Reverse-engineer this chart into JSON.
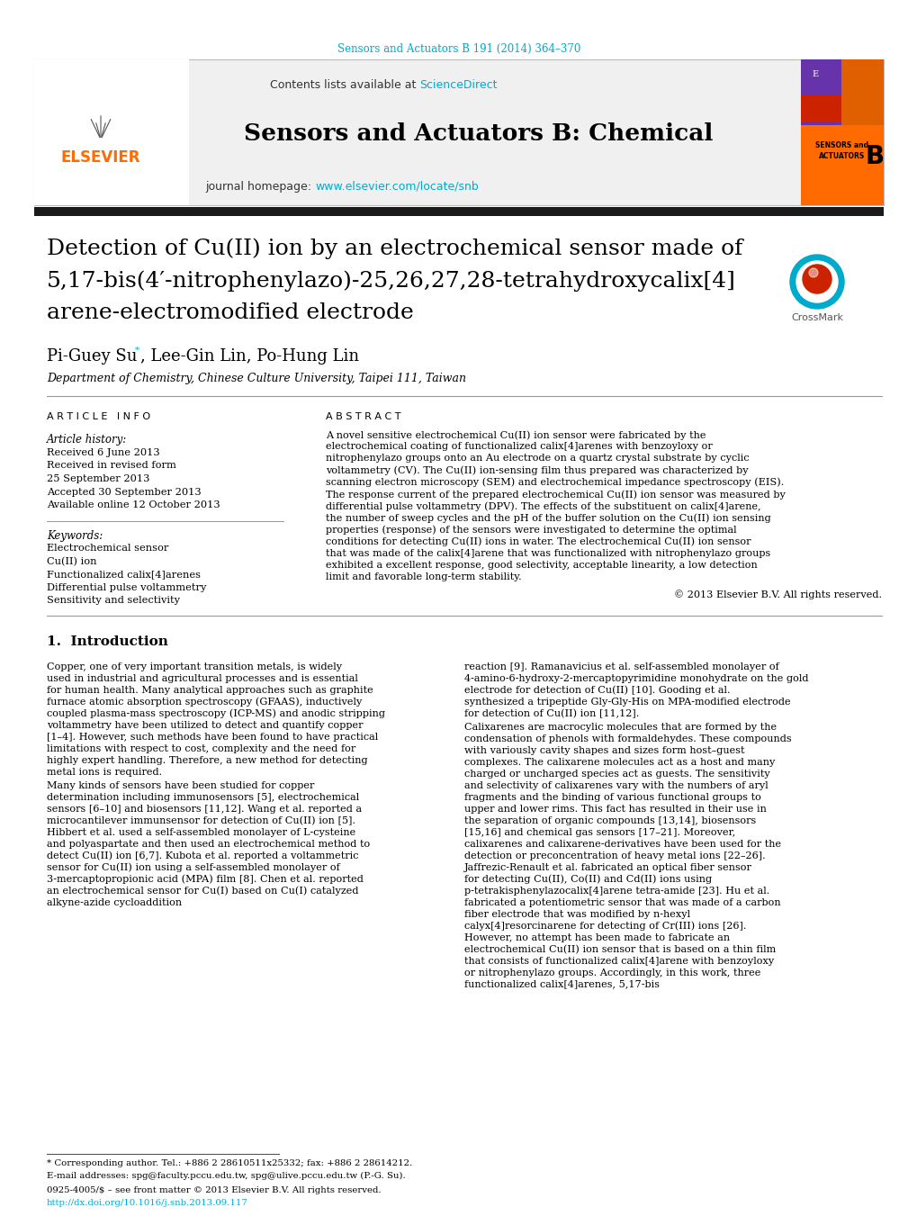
{
  "journal_ref": "Sensors and Actuators B 191 (2014) 364–370",
  "journal_name": "Sensors and Actuators B: Chemical",
  "contents_text": "Contents lists available at ",
  "sciencedirect": "ScienceDirect",
  "journal_homepage": "journal homepage: ",
  "homepage_url": "www.elsevier.com/locate/snb",
  "title_line1": "Detection of Cu(II) ion by an electrochemical sensor made of",
  "title_line2": "5,17-bis(4′-nitrophenylazo)-25,26,27,28-tetrahydroxycalix[4]",
  "title_line3": "arene-electromodified electrode",
  "affiliation": "Department of Chemistry, Chinese Culture University, Taipei 111, Taiwan",
  "article_info_header": "A R T I C L E   I N F O",
  "abstract_header": "A B S T R A C T",
  "article_history_label": "Article history:",
  "received": "Received 6 June 2013",
  "revised": "Received in revised form",
  "revised2": "25 September 2013",
  "accepted": "Accepted 30 September 2013",
  "available": "Available online 12 October 2013",
  "keywords_label": "Keywords:",
  "keywords": [
    "Electrochemical sensor",
    "Cu(II) ion",
    "Functionalized calix[4]arenes",
    "Differential pulse voltammetry",
    "Sensitivity and selectivity"
  ],
  "abstract_text": "A novel sensitive electrochemical Cu(II) ion sensor were fabricated by the electrochemical coating of functionalized calix[4]arenes with benzoyloxy or nitrophenylazo groups onto an Au electrode on a quartz crystal substrate by cyclic voltammetry (CV). The Cu(II) ion-sensing film thus prepared was characterized by scanning electron microscopy (SEM) and electrochemical impedance spectroscopy (EIS). The response current of the prepared electrochemical Cu(II) ion sensor was measured by differential pulse voltammetry (DPV). The effects of the substituent on calix[4]arene, the number of sweep cycles and the pH of the buffer solution on the Cu(II) ion sensing properties (response) of the sensors were investigated to determine the optimal conditions for detecting Cu(II) ions in water. The electrochemical Cu(II) ion sensor that was made of the calix[4]arene that was functionalized with nitrophenylazo groups exhibited a excellent response, good selectivity, acceptable linearity, a low detection limit and favorable long-term stability.",
  "copyright": "© 2013 Elsevier B.V. All rights reserved.",
  "section1_title": "1.  Introduction",
  "intro_col1": "    Copper, one of very important transition metals, is widely used in industrial and agricultural processes and is essential for human health. Many analytical approaches such as graphite furnace atomic absorption spectroscopy (GFAAS), inductively coupled plasma-mass spectroscopy (ICP-MS) and anodic stripping voltammetry have been utilized to detect and quantify copper [1–4]. However, such methods have been found to have practical limitations with respect to cost, complexity and the need for highly expert handling. Therefore, a new method for detecting metal ions is required.\n    Many kinds of sensors have been studied for copper determination including immunosensors [5], electrochemical sensors [6–10] and biosensors [11,12]. Wang et al. reported a microcantilever immunsensor for detection of Cu(II) ion [5]. Hibbert et al. used a self-assembled monolayer of L-cysteine and polyaspartate and then used an electrochemical method to detect Cu(II) ion [6,7]. Kubota et al. reported a voltammetric sensor for Cu(II) ion using a self-assembled monolayer of 3-mercaptopropionic acid (MPA) film [8]. Chen et al. reported an electrochemical sensor for Cu(I) based on Cu(I) catalyzed alkyne-azide cycloaddition",
  "intro_col2": "reaction [9]. Ramanavicius et al. self-assembled monolayer of 4-amino-6-hydroxy-2-mercaptopyrimidine monohydrate on the gold electrode for detection of Cu(II) [10]. Gooding et al. synthesized a tripeptide Gly-Gly-His on MPA-modified electrode for detection of Cu(II) ion [11,12].\n    Calixarenes are macrocylic molecules that are formed by the condensation of phenols with formaldehydes. These compounds with variously cavity shapes and sizes form host–guest complexes. The calixarene molecules act as a host and many charged or uncharged species act as guests. The sensitivity and selectivity of calixarenes vary with the numbers of aryl fragments and the binding of various functional groups to upper and lower rims. This fact has resulted in their use in the separation of organic compounds [13,14], biosensors [15,16] and chemical gas sensors [17–21]. Moreover, calixarenes and calixarene-derivatives have been used for the detection or preconcentration of heavy metal ions [22–26]. Jaffrezic-Renault et al. fabricated an optical fiber sensor for detecting Cu(II), Co(II) and Cd(II) ions using p-tetrakisphenylazocalix[4]arene tetra-amide [23]. Hu et al. fabricated a potentiometric sensor that was made of a carbon fiber electrode that was modified by n-hexyl calyx[4]resorcinarene for detecting of Cr(III) ions [26]. However, no attempt has been made to fabricate an electrochemical Cu(II) ion sensor that is based on a thin film that consists of functionalized calix[4]arene with benzoyloxy or nitrophenylazo groups. Accordingly, in this work, three functionalized calix[4]arenes, 5,17-bis",
  "footnote_line1": "* Corresponding author. Tel.: +886 2 28610511x25332; fax: +886 2 28614212.",
  "footnote_line2": "E-mail addresses: spg@faculty.pccu.edu.tw, spg@ulive.pccu.edu.tw (P.-G. Su).",
  "footnote_issn": "0925-4005/$ – see front matter © 2013 Elsevier B.V. All rights reserved.",
  "footnote_doi": "http://dx.doi.org/10.1016/j.snb.2013.09.117",
  "bg_color": "#ffffff",
  "header_bg": "#f0f0f0",
  "black_bar": "#1a1a1a",
  "elsevier_orange": "#FF6B00",
  "link_color": "#00aacc",
  "text_color": "#000000"
}
